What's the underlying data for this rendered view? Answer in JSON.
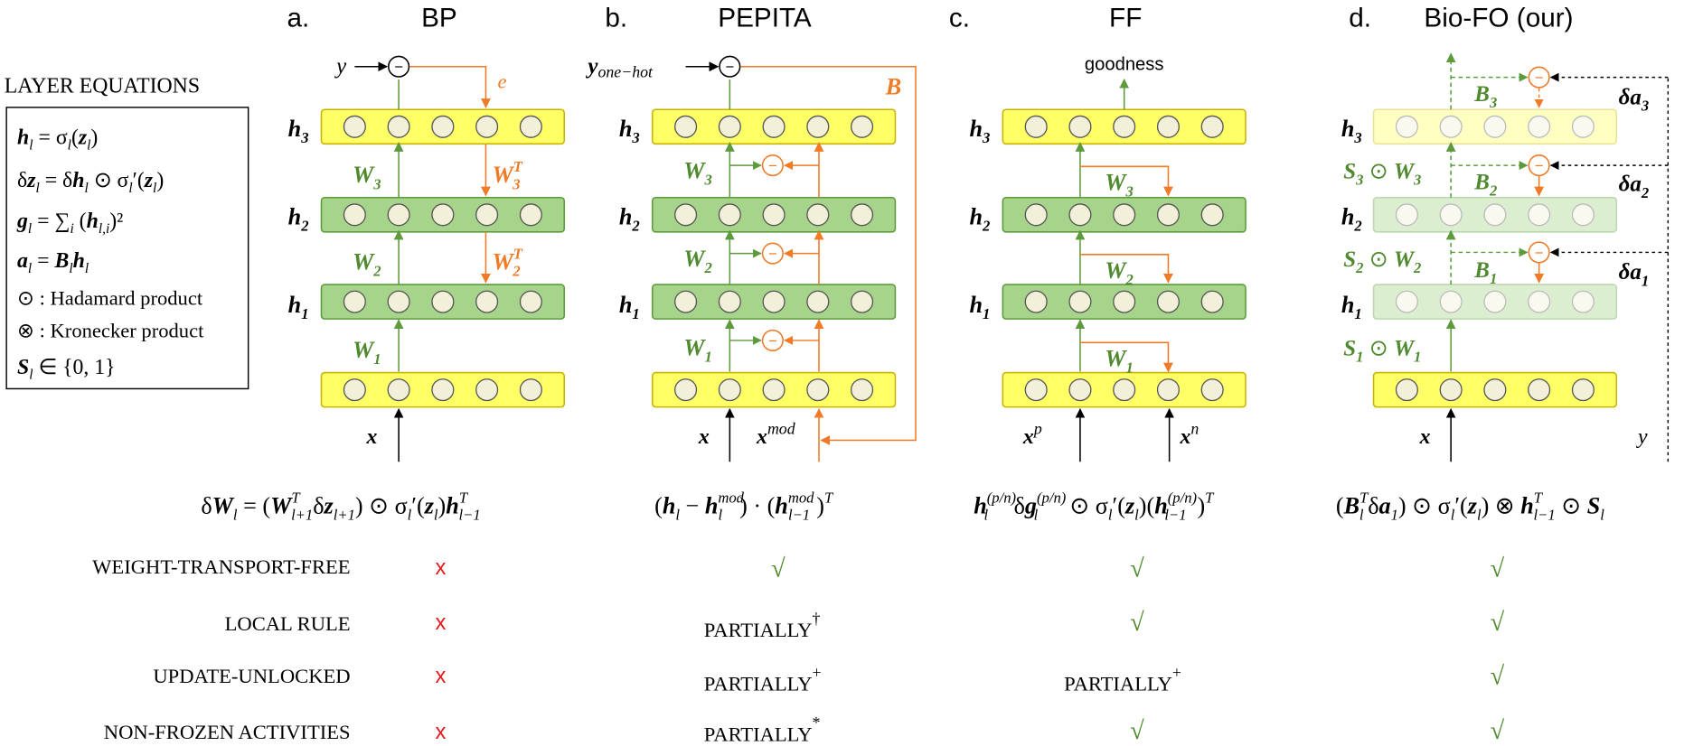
{
  "panels": [
    {
      "letter": "a.",
      "title": "BP"
    },
    {
      "letter": "b.",
      "title": "PEPITA"
    },
    {
      "letter": "c.",
      "title": "FF"
    },
    {
      "letter": "d.",
      "title": "Bio-FO (our)"
    }
  ],
  "layer_equations": {
    "title": "LAYER EQUATIONS",
    "lines": [
      "h_l = σ_l(z_l)",
      "δz_l = δh_l ⊙ σ_l′(z_l)",
      "g_l = ∑_i (h_l,i)²",
      "a_l = B_l h_l",
      "⊙ : Hadamard product",
      "⊗ : Kronecker product",
      "S_l ∈ {0, 1}"
    ]
  },
  "labels": {
    "h3": "h",
    "h2": "h",
    "h1": "h",
    "sub3": "3",
    "sub2": "2",
    "sub1": "1",
    "x": "x",
    "y": "y",
    "e": "e",
    "w": "W",
    "wt": "T",
    "y_onehot": "y",
    "onehot_sub": "one−hot",
    "B": "B",
    "x_mod": "mod",
    "goodness": "goodness",
    "xp": "p",
    "xn": "n",
    "S": "S",
    "odot": "⊙",
    "delta_a": "δa",
    "minus": "−"
  },
  "update_rules": [
    "δW_l = (W_{l+1}^T δz_{l+1}) ⊙ σ_l′(z_l) h_{l−1}^T",
    "(h_l − h_l^mod) · (h_{l−1}^mod)^T",
    "h_l^(p/n) δg_l^(p/n) ⊙ σ_l′(z_l)(h_{l−1}^(p/n))^T",
    "(B_l^T δa_1) ⊙ σ_l′(z_l) ⊗ h_{l−1}^T ⊙ S_l"
  ],
  "properties": [
    {
      "name": "WEIGHT-TRANSPORT-FREE",
      "values": [
        "x",
        "√",
        "√",
        "√"
      ]
    },
    {
      "name": "LOCAL RULE",
      "values": [
        "x",
        "PARTIALLY",
        "√",
        "√"
      ],
      "marks": [
        "",
        "†",
        "",
        ""
      ]
    },
    {
      "name": "UPDATE-UNLOCKED",
      "values": [
        "x",
        "PARTIALLY",
        "PARTIALLY",
        "√"
      ],
      "marks": [
        "",
        "+",
        "+",
        ""
      ]
    },
    {
      "name": "NON-FROZEN ACTIVITIES",
      "values": [
        "x",
        "PARTIALLY",
        "√",
        "√"
      ],
      "marks": [
        "",
        "*",
        "",
        ""
      ]
    }
  ],
  "colors": {
    "yellow_fill": "#ffff66",
    "yellow_stroke": "#c9b200",
    "green_fill": "#a5d48a",
    "green_stroke": "#5d9a3c",
    "node_fill": "#f2f0d8",
    "green_text": "#4f8a2f",
    "orange": "#f07a26",
    "red": "#e41a1c"
  }
}
